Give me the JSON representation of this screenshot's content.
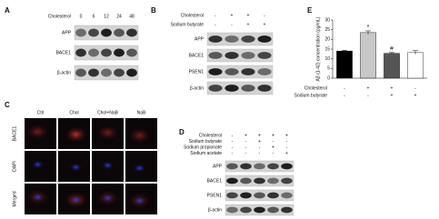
{
  "panel_a": {
    "label": "A",
    "header": "Cholesterol",
    "lanes": [
      "0",
      "6",
      "12",
      "24",
      "48"
    ],
    "blots": [
      "APP",
      "BACE1",
      "β-actin"
    ]
  },
  "panel_b": {
    "label": "B",
    "conditions": [
      {
        "name": "Cholesterol",
        "signs": [
          "-",
          "+",
          "+",
          "-"
        ]
      },
      {
        "name": "Sodium butyrate",
        "signs": [
          "-",
          "-",
          "+",
          "+"
        ]
      }
    ],
    "blots": [
      "APP",
      "BACE1",
      "PSEN1",
      "β-actin"
    ]
  },
  "panel_c": {
    "label": "C",
    "columns": [
      "Ctrl",
      "Chol",
      "Chol+NaB",
      "NaB"
    ],
    "rows": [
      "BACE1",
      "DAPI",
      "Merged"
    ]
  },
  "panel_d": {
    "label": "D",
    "conditions": [
      {
        "name": "Cholesterol",
        "signs": [
          "-",
          "+",
          "+",
          "+",
          "+"
        ]
      },
      {
        "name": "Sodium butyrate",
        "signs": [
          "-",
          "-",
          "+",
          "-",
          "-"
        ]
      },
      {
        "name": "Sodium propionate",
        "signs": [
          "-",
          "-",
          "-",
          "+",
          "-"
        ]
      },
      {
        "name": "Sodium acetate",
        "signs": [
          "-",
          "-",
          "-",
          "-",
          "+"
        ]
      }
    ],
    "blots": [
      "APP",
      "BACE1",
      "PSEN1",
      "β-actin"
    ]
  },
  "chart_data": {
    "type": "bar",
    "panel_label": "E",
    "y_label": "Aβ (1-42) concentration (pg/mL)",
    "categories": [
      null,
      null,
      null,
      null
    ],
    "values": [
      14,
      23.5,
      12.8,
      13.2
    ],
    "errors": [
      0.4,
      0.9,
      0.4,
      1.0
    ],
    "significance": [
      null,
      "*",
      "#",
      null
    ],
    "colors": [
      "#000000",
      "#c8c8c8",
      "#555555",
      "#ffffff"
    ],
    "ylim": [
      0,
      30
    ],
    "yticks": [
      0,
      5,
      10,
      15,
      20,
      25,
      30
    ],
    "conditions": [
      {
        "name": "Cholesterol",
        "signs": [
          "-",
          "+",
          "+",
          "-"
        ]
      },
      {
        "name": "Sodium butyrate",
        "signs": [
          "-",
          "-",
          "+",
          "+"
        ]
      }
    ]
  }
}
